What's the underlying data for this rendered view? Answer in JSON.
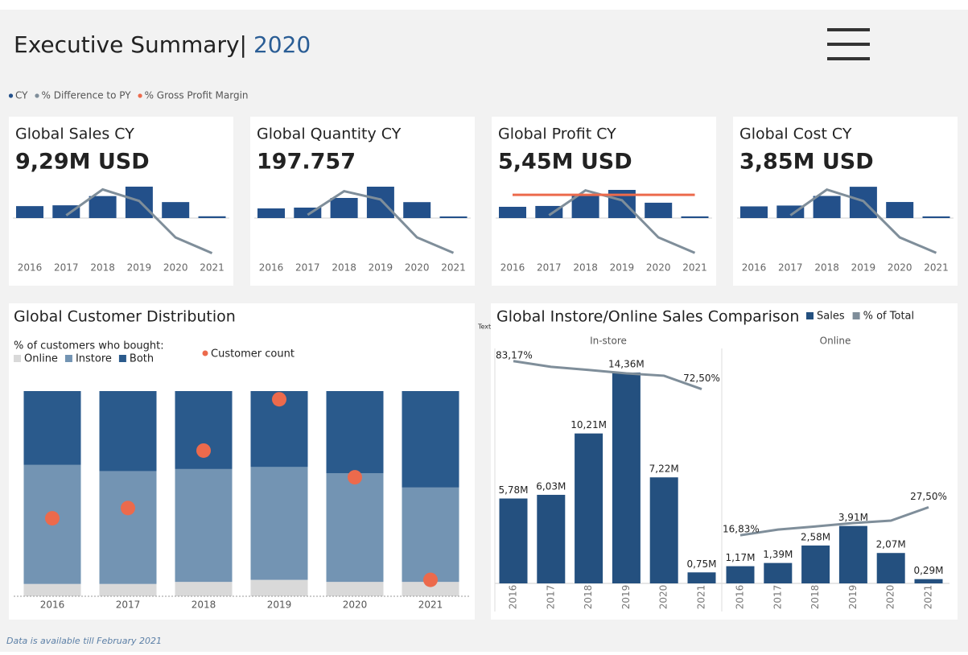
{
  "header": {
    "title": "Executive Summary|",
    "year": "2020"
  },
  "legend": [
    {
      "name": "CY",
      "color": "#23508a"
    },
    {
      "name": "% Difference to PY",
      "color": "#7f8e9a"
    },
    {
      "name": "% Gross Profit Margin",
      "color": "#ec6a4c"
    }
  ],
  "chart_data": [
    {
      "type": "kpi",
      "title": "Global Sales CY",
      "kpi": "9,29M USD",
      "categories": [
        "2016",
        "2017",
        "2018",
        "2019",
        "2020",
        "2021"
      ],
      "series": [
        {
          "color": "#23508a",
          "values": [
            6.95,
            7.42,
            12.79,
            18.27,
            9.29,
            1.04
          ]
        },
        {
          "axis": "y2",
          "color": "#7f8e9a",
          "values": [
            null,
            6.8,
            72.4,
            43.3,
            -49.2,
            -88.8
          ]
        }
      ],
      "ylim": [
        0,
        26.2
      ],
      "y2lim": [
        -110,
        114
      ]
    },
    {
      "type": "kpi",
      "title": "Global Quantity CY",
      "kpi": "197.757",
      "categories": [
        "2016",
        "2017",
        "2018",
        "2019",
        "2020",
        "2021"
      ],
      "series": [
        {
          "color": "#23508a",
          "values": [
            120,
            130,
            250,
            390,
            198,
            20
          ]
        },
        {
          "axis": "y2",
          "color": "#7f8e9a",
          "values": [
            null,
            8,
            68,
            47,
            -49,
            -88
          ]
        }
      ],
      "ylim": [
        0,
        560
      ],
      "y2lim": [
        -110,
        114
      ]
    },
    {
      "type": "kpi",
      "title": "Global Profit CY",
      "kpi": "5,45M USD",
      "categories": [
        "2016",
        "2017",
        "2018",
        "2019",
        "2020",
        "2021"
      ],
      "series": [
        {
          "color": "#23508a",
          "values": [
            4.0,
            4.3,
            8.0,
            10.0,
            5.45,
            0.6
          ]
        },
        {
          "axis": "y2",
          "color": "#7f8e9a",
          "values": [
            null,
            7,
            70,
            45,
            -49,
            -88
          ]
        },
        {
          "axis": "y2",
          "color": "#ec6a4c",
          "values": [
            58.7,
            58.7,
            58.7,
            58.7,
            58.7,
            58.7
          ]
        }
      ],
      "ylim": [
        0,
        16
      ],
      "y2lim": [
        -110,
        114
      ]
    },
    {
      "type": "kpi",
      "title": "Global Cost CY",
      "kpi": "3,85M USD",
      "categories": [
        "2016",
        "2017",
        "2018",
        "2019",
        "2020",
        "2021"
      ],
      "series": [
        {
          "color": "#23508a",
          "values": [
            2.8,
            3.0,
            5.3,
            7.5,
            3.85,
            0.4
          ]
        },
        {
          "axis": "y2",
          "color": "#7f8e9a",
          "values": [
            null,
            7,
            72,
            43,
            -49,
            -88
          ]
        }
      ],
      "ylim": [
        0,
        10.8
      ],
      "y2lim": [
        -110,
        114
      ]
    },
    {
      "type": "stacked",
      "title": "Global Customer Distribution",
      "subtitle": "% of customers who bought:",
      "categories": [
        "2016",
        "2017",
        "2018",
        "2019",
        "2020",
        "2021"
      ],
      "series": [
        {
          "name": "Online",
          "color": "#d9d9d9",
          "values": [
            6,
            6,
            7,
            8,
            7,
            7
          ]
        },
        {
          "name": "Instore",
          "color": "#7394b3",
          "values": [
            58,
            55,
            55,
            55,
            53,
            46
          ]
        },
        {
          "name": "Both",
          "color": "#2a5a8c",
          "values": [
            36,
            39,
            38,
            37,
            40,
            47
          ]
        },
        {
          "name": "Customer count",
          "color": "#ec6a4c",
          "axis": "y2",
          "values": [
            38,
            43,
            71,
            96,
            58,
            8
          ]
        }
      ],
      "ylim": [
        0,
        100
      ],
      "y2lim": [
        0,
        100
      ]
    },
    {
      "type": "faceted_bar",
      "title": "Global Instore/Online Sales Comparison",
      "categories": [
        "2016",
        "2017",
        "2018",
        "2019",
        "2020",
        "2021"
      ],
      "legend": [
        {
          "name": "Sales",
          "color": "#24507f"
        },
        {
          "name": "% of Total",
          "color": "#7f8e9a"
        }
      ],
      "facets": [
        {
          "name": "In-store",
          "series": [
            {
              "values": [
                5.78,
                6.03,
                10.21,
                14.36,
                7.22,
                0.75
              ],
              "value_labels": [
                "5,78M",
                "6,03M",
                "10,21M",
                "14,36M",
                "7,22M",
                "0,75M"
              ]
            },
            {
              "axis": "y2",
              "values": [
                83.17,
                81.0,
                79.8,
                78.5,
                77.6,
                72.5
              ],
              "value_labels": [
                "83,17%",
                null,
                null,
                null,
                null,
                "72,50%"
              ]
            }
          ]
        },
        {
          "name": "Online",
          "series": [
            {
              "values": [
                1.17,
                1.39,
                2.58,
                3.91,
                2.07,
                0.29
              ],
              "value_labels": [
                "1,17M",
                "1,39M",
                "2,58M",
                "3,91M",
                "2,07M",
                "0,29M"
              ]
            },
            {
              "axis": "y2",
              "values": [
                16.83,
                19.0,
                20.2,
                21.5,
                22.4,
                27.5
              ],
              "value_labels": [
                "16,83%",
                null,
                null,
                null,
                null,
                "27,50%"
              ]
            }
          ]
        }
      ],
      "ylim": [
        0,
        16
      ],
      "y2lim": [
        -1.5,
        88
      ]
    }
  ],
  "stray_text": "Text",
  "footnote": "Data is available till February 2021"
}
